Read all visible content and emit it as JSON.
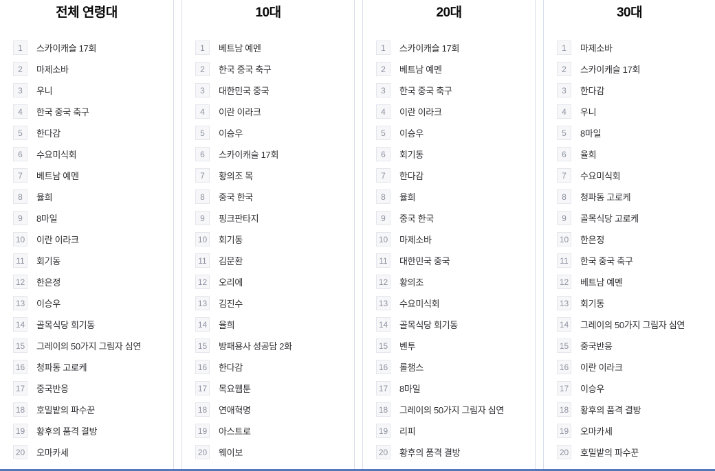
{
  "theme": {
    "divider_color": "#d8dde9",
    "badge_bg": "#f7f7f9",
    "badge_border": "#e4e6ec",
    "badge_text": "#8d92a0",
    "item_text": "#2e2e32",
    "title_text": "#0a0a0a",
    "bottom_line": "#5577c0"
  },
  "columns": [
    {
      "title": "전체 연령대",
      "items": [
        {
          "rank": 1,
          "label": "스카이캐슬 17회"
        },
        {
          "rank": 2,
          "label": "마제소바"
        },
        {
          "rank": 3,
          "label": "우니"
        },
        {
          "rank": 4,
          "label": "한국 중국 축구"
        },
        {
          "rank": 5,
          "label": "한다감"
        },
        {
          "rank": 6,
          "label": "수요미식회"
        },
        {
          "rank": 7,
          "label": "베트남 예멘"
        },
        {
          "rank": 8,
          "label": "율희"
        },
        {
          "rank": 9,
          "label": "8마일"
        },
        {
          "rank": 10,
          "label": "이란 이라크"
        },
        {
          "rank": 11,
          "label": "회기동"
        },
        {
          "rank": 12,
          "label": "한은정"
        },
        {
          "rank": 13,
          "label": "이승우"
        },
        {
          "rank": 14,
          "label": "골목식당 회기동"
        },
        {
          "rank": 15,
          "label": "그레이의 50가지 그림자 심연"
        },
        {
          "rank": 16,
          "label": "청파동 고로케"
        },
        {
          "rank": 17,
          "label": "중국반응"
        },
        {
          "rank": 18,
          "label": "호밀밭의 파수꾼"
        },
        {
          "rank": 19,
          "label": "황후의 품격 결방"
        },
        {
          "rank": 20,
          "label": "오마카세"
        }
      ]
    },
    {
      "title": "10대",
      "items": [
        {
          "rank": 1,
          "label": "베트남 예멘"
        },
        {
          "rank": 2,
          "label": "한국 중국 축구"
        },
        {
          "rank": 3,
          "label": "대한민국 중국"
        },
        {
          "rank": 4,
          "label": "이란 이라크"
        },
        {
          "rank": 5,
          "label": "이승우"
        },
        {
          "rank": 6,
          "label": "스카이캐슬 17회"
        },
        {
          "rank": 7,
          "label": "황의조 목"
        },
        {
          "rank": 8,
          "label": "중국 한국"
        },
        {
          "rank": 9,
          "label": "핑크판타지"
        },
        {
          "rank": 10,
          "label": "회기동"
        },
        {
          "rank": 11,
          "label": "김문환"
        },
        {
          "rank": 12,
          "label": "오리에"
        },
        {
          "rank": 13,
          "label": "김진수"
        },
        {
          "rank": 14,
          "label": "율희"
        },
        {
          "rank": 15,
          "label": "방패용사 성공담 2화"
        },
        {
          "rank": 16,
          "label": "한다감"
        },
        {
          "rank": 17,
          "label": "목요웹툰"
        },
        {
          "rank": 18,
          "label": "연애혁명"
        },
        {
          "rank": 19,
          "label": "아스트로"
        },
        {
          "rank": 20,
          "label": "웨이보"
        }
      ]
    },
    {
      "title": "20대",
      "items": [
        {
          "rank": 1,
          "label": "스카이캐슬 17회"
        },
        {
          "rank": 2,
          "label": "베트남 예멘"
        },
        {
          "rank": 3,
          "label": "한국 중국 축구"
        },
        {
          "rank": 4,
          "label": "이란 이라크"
        },
        {
          "rank": 5,
          "label": "이승우"
        },
        {
          "rank": 6,
          "label": "회기동"
        },
        {
          "rank": 7,
          "label": "한다감"
        },
        {
          "rank": 8,
          "label": "율희"
        },
        {
          "rank": 9,
          "label": "중국 한국"
        },
        {
          "rank": 10,
          "label": "마제소바"
        },
        {
          "rank": 11,
          "label": "대한민국 중국"
        },
        {
          "rank": 12,
          "label": "황의조"
        },
        {
          "rank": 13,
          "label": "수요미식회"
        },
        {
          "rank": 14,
          "label": "골목식당 회기동"
        },
        {
          "rank": 15,
          "label": "벤투"
        },
        {
          "rank": 16,
          "label": "롤챔스"
        },
        {
          "rank": 17,
          "label": "8마일"
        },
        {
          "rank": 18,
          "label": "그레이의 50가지 그림자 심연"
        },
        {
          "rank": 19,
          "label": "리피"
        },
        {
          "rank": 20,
          "label": "황후의 품격 결방"
        }
      ]
    },
    {
      "title": "30대",
      "items": [
        {
          "rank": 1,
          "label": "마제소바"
        },
        {
          "rank": 2,
          "label": "스카이캐슬 17회"
        },
        {
          "rank": 3,
          "label": "한다감"
        },
        {
          "rank": 4,
          "label": "우니"
        },
        {
          "rank": 5,
          "label": "8마일"
        },
        {
          "rank": 6,
          "label": "율희"
        },
        {
          "rank": 7,
          "label": "수요미식회"
        },
        {
          "rank": 8,
          "label": "청파동 고로케"
        },
        {
          "rank": 9,
          "label": "골목식당 고로케"
        },
        {
          "rank": 10,
          "label": "한은정"
        },
        {
          "rank": 11,
          "label": "한국 중국 축구"
        },
        {
          "rank": 12,
          "label": "베트남 예멘"
        },
        {
          "rank": 13,
          "label": "회기동"
        },
        {
          "rank": 14,
          "label": "그레이의 50가지 그림자 심연"
        },
        {
          "rank": 15,
          "label": "중국반응"
        },
        {
          "rank": 16,
          "label": "이란 이라크"
        },
        {
          "rank": 17,
          "label": "이승우"
        },
        {
          "rank": 18,
          "label": "황후의 품격 결방"
        },
        {
          "rank": 19,
          "label": "오마카세"
        },
        {
          "rank": 20,
          "label": "호밀밭의 파수꾼"
        }
      ]
    }
  ]
}
